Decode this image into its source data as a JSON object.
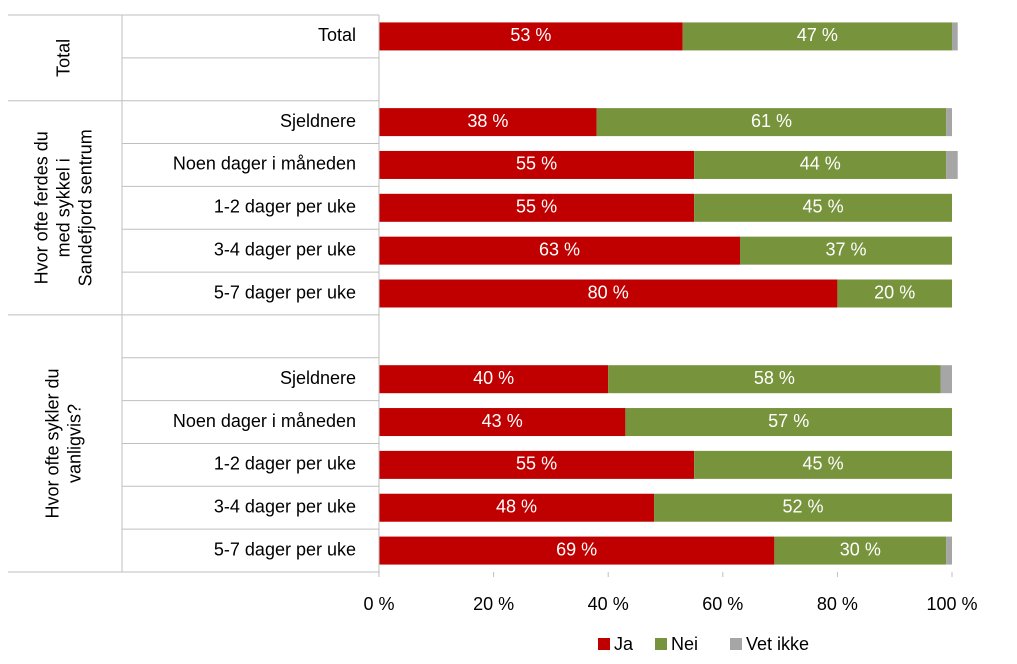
{
  "chart_data": {
    "type": "stacked-bar-horizontal",
    "groups": [
      [
        "Total"
      ],
      [
        "Hvor ofte ferdes du",
        "med sykkel i",
        "Sandefjord sentrum"
      ],
      [
        "Hvor ofte sykler du",
        "vanligvis?"
      ]
    ],
    "categories": [
      "Total",
      null,
      "Sjeldnere",
      "Noen dager i måneden",
      "1-2 dager per uke",
      "3-4 dager per uke",
      "5-7 dager per uke",
      null,
      "Sjeldnere",
      "Noen dager i måneden",
      "1-2 dager per uke",
      "3-4 dager per uke",
      "5-7 dager per uke"
    ],
    "series": [
      {
        "name": "Ja",
        "color": "#c00000",
        "values": [
          53,
          null,
          38,
          55,
          55,
          63,
          80,
          null,
          40,
          43,
          55,
          48,
          69
        ],
        "value_labels": [
          "53 %",
          null,
          "38 %",
          "55 %",
          "55 %",
          "63 %",
          "80 %",
          null,
          "40 %",
          "43 %",
          "55 %",
          "48 %",
          "69 %"
        ]
      },
      {
        "name": "Nei",
        "color": "#77933c",
        "values": [
          47,
          null,
          61,
          44,
          45,
          37,
          20,
          null,
          58,
          57,
          45,
          52,
          30
        ],
        "value_labels": [
          "47 %",
          null,
          "61 %",
          "44 %",
          "45 %",
          "37 %",
          "20 %",
          null,
          "58 %",
          "57 %",
          "45 %",
          "52 %",
          "30 %"
        ]
      },
      {
        "name": "Vet ikke",
        "color": "#a6a6a6",
        "values": [
          1,
          null,
          1,
          2,
          0,
          0,
          0,
          null,
          2,
          0,
          0,
          0,
          1
        ]
      }
    ],
    "xlim": [
      0,
      100
    ],
    "xticks": [
      {
        "value": 0,
        "label": "0 %"
      },
      {
        "value": 20,
        "label": "20 %"
      },
      {
        "value": 40,
        "label": "40 %"
      },
      {
        "value": 60,
        "label": "60 %"
      },
      {
        "value": 80,
        "label": "80 %"
      },
      {
        "value": 100,
        "label": "100 %"
      }
    ],
    "legend": "bottom"
  }
}
